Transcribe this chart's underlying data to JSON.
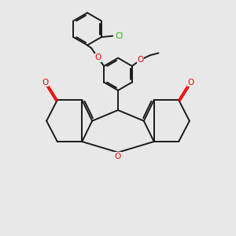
{
  "bg_color": "#e8e8e8",
  "bond_color": "#1a1a1a",
  "o_color": "#ee0000",
  "cl_color": "#22bb00",
  "lw": 1.4,
  "fs": 7.5,
  "figsize": [
    3.0,
    3.0
  ],
  "dpi": 100,
  "xlim": [
    0,
    10
  ],
  "ylim": [
    0,
    10.5
  ]
}
